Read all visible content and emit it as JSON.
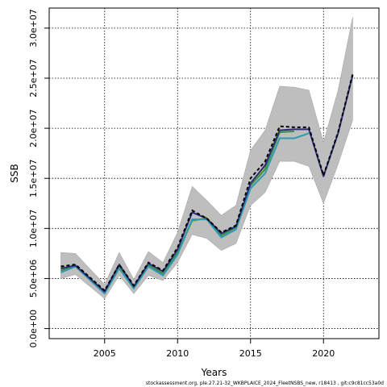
{
  "chart_data": {
    "type": "line",
    "xlabel": "Years",
    "ylabel": "SSB",
    "xlim": [
      2001.2,
      2023.8
    ],
    "ylim": [
      -1000000,
      32000000
    ],
    "x_ticks": [
      2005,
      2010,
      2015,
      2020
    ],
    "x_tick_labels": [
      "2005",
      "2010",
      "2015",
      "2020"
    ],
    "y_ticks": [
      0,
      5000000,
      10000000,
      15000000,
      20000000,
      25000000,
      30000000
    ],
    "y_tick_labels": [
      "0.0e+00",
      "5.0e+06",
      "1.0e+07",
      "1.5e+07",
      "2.0e+07",
      "2.5e+07",
      "3.0e+07"
    ],
    "grid": true,
    "band": {
      "x": [
        2002,
        2003,
        2005,
        2006,
        2007,
        2008,
        2009,
        2010,
        2011,
        2012,
        2013,
        2014,
        2015,
        2016,
        2017,
        2018,
        2019,
        2020,
        2021,
        2022
      ],
      "upper": [
        7600000,
        7500000,
        4400000,
        7600000,
        4900000,
        7700000,
        6600000,
        9600000,
        14200000,
        12800000,
        11300000,
        12300000,
        17800000,
        19800000,
        24200000,
        24100000,
        23800000,
        18600000,
        23800000,
        31100000
      ],
      "lower": [
        5000000,
        5400000,
        3000000,
        5300000,
        3500000,
        5300000,
        4800000,
        6600000,
        9400000,
        9000000,
        7800000,
        8500000,
        12300000,
        13600000,
        16700000,
        16700000,
        16200000,
        12500000,
        16400000,
        20800000
      ]
    },
    "series": [
      {
        "style": "dashed",
        "color": "#000000",
        "x": [
          2002,
          2003,
          2005,
          2006,
          2007,
          2008,
          2009,
          2010,
          2011,
          2012,
          2013,
          2014,
          2015,
          2016,
          2017,
          2018,
          2019,
          2020,
          2021,
          2022
        ],
        "values": [
          6200000,
          6400000,
          3800000,
          6400000,
          4300000,
          6600000,
          5800000,
          8100000,
          11800000,
          11000000,
          9600000,
          10300000,
          15000000,
          16700000,
          20200000,
          20100000,
          20100000,
          15300000,
          19600000,
          25400000
        ]
      },
      {
        "style": "solid",
        "color": "#2b2d7a",
        "x": [
          2002,
          2003,
          2005,
          2006,
          2007,
          2008,
          2009,
          2010,
          2011,
          2012,
          2013,
          2014,
          2015,
          2016,
          2017,
          2018,
          2019,
          2020,
          2021,
          2022
        ],
        "values": [
          6000000,
          6300000,
          3700000,
          6400000,
          4200000,
          6500000,
          5700000,
          7900000,
          11600000,
          11000000,
          9500000,
          10200000,
          14500000,
          16300000,
          19800000,
          19900000,
          19900000,
          15200000,
          19500000,
          25300000
        ]
      },
      {
        "style": "solid",
        "color": "#2e9bb0",
        "x": [
          2002,
          2003,
          2005,
          2006,
          2007,
          2008,
          2009,
          2010,
          2011,
          2012,
          2013,
          2014,
          2015,
          2016,
          2017,
          2018,
          2019
        ],
        "values": [
          5600000,
          6200000,
          3500000,
          6000000,
          4000000,
          6200000,
          5300000,
          7400000,
          10900000,
          10900000,
          9100000,
          9900000,
          14000000,
          15500000,
          19000000,
          19000000,
          19500000
        ]
      },
      {
        "style": "solid",
        "color": "#3e8f3e",
        "x": [
          2002,
          2003,
          2005,
          2006,
          2007,
          2008,
          2009,
          2010,
          2011,
          2012,
          2013,
          2014,
          2015,
          2016,
          2017,
          2018
        ],
        "values": [
          5800000,
          6300000,
          3600000,
          6200000,
          4100000,
          6300000,
          5500000,
          7600000,
          10800000,
          11000000,
          9300000,
          10100000,
          14300000,
          15900000,
          19600000,
          19700000
        ]
      },
      {
        "style": "solid",
        "color": "#b8c24a",
        "x": [
          2002,
          2003,
          2005,
          2006,
          2007,
          2008,
          2009,
          2010,
          2011,
          2012,
          2013,
          2014,
          2015,
          2016,
          2017
        ],
        "values": [
          5700000,
          6200000,
          3600000,
          6100000,
          4000000,
          6200000,
          5400000,
          7500000,
          10700000,
          11100000,
          9400000,
          10200000,
          14400000,
          16200000,
          20100000
        ]
      }
    ],
    "footer_text": "stockassessment.org, ple.27.21-32_WKBPLAICE_2024_FleetNSBS_new, r18413 , git:c9c81cc53a0d"
  }
}
